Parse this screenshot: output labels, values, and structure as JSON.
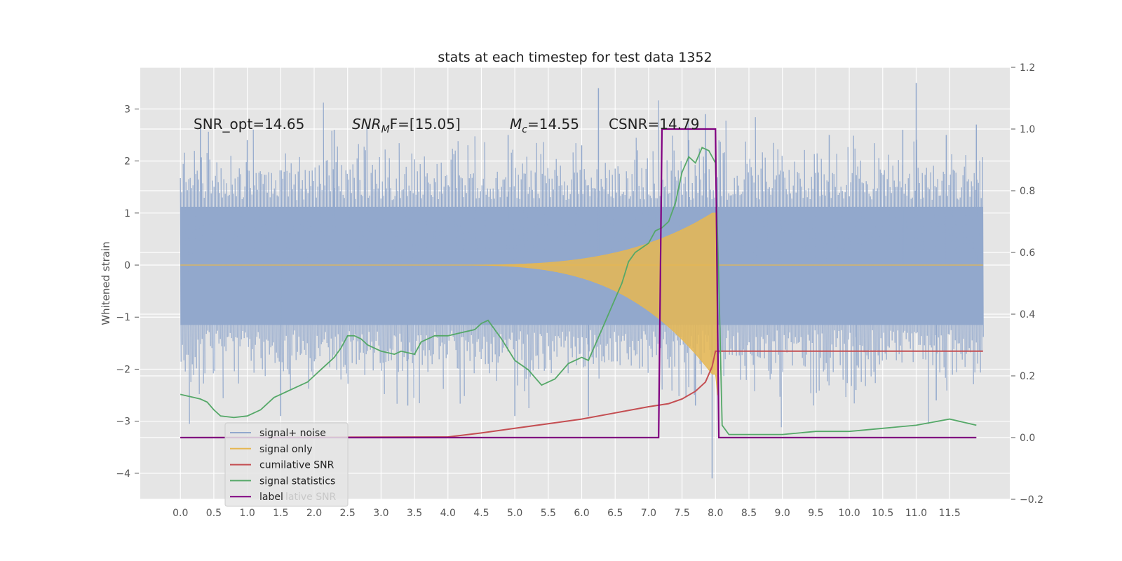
{
  "chart_data": {
    "type": "line",
    "title": "stats at each timestep for test data 1352",
    "xlabel": "",
    "ylabel": "Whitened strain",
    "xlim": [
      -0.6,
      12.4
    ],
    "ylim": [
      -4.5,
      3.8
    ],
    "y2lim": [
      -0.2,
      1.2
    ],
    "grid": true,
    "x_ticks": [
      "0.0",
      "0.5",
      "1.0",
      "1.5",
      "2.0",
      "2.5",
      "3.0",
      "3.5",
      "4.0",
      "4.5",
      "5.0",
      "5.5",
      "6.0",
      "6.5",
      "7.0",
      "7.5",
      "8.0",
      "8.5",
      "9.0",
      "9.5",
      "10.0",
      "10.5",
      "11.0",
      "11.5"
    ],
    "y_ticks": [
      "−4",
      "−3",
      "−2",
      "−1",
      "0",
      "1",
      "2",
      "3"
    ],
    "y2_ticks": [
      "−0.2",
      "0.0",
      "0.2",
      "0.4",
      "0.6",
      "0.8",
      "1.0",
      "1.2"
    ],
    "annotations": {
      "snr_opt": "SNR_opt=14.65",
      "snr_mf_italic": "SNR",
      "snr_mf_sub": "M",
      "snr_mf_tail": "F=[15.05]",
      "mc_italic": "M",
      "mc_sub": "c",
      "mc_tail": "=14.55",
      "csnr": "CSNR=14.79"
    },
    "legend": {
      "placement": "lower-left",
      "entries": [
        "signal+ noise",
        "signal only",
        "cumilative SNR",
        "signal statistics",
        "label"
      ],
      "ghost_text": "lative SNR"
    },
    "series": [
      {
        "name": "signal+ noise",
        "axis": "left",
        "color": "#92a8cc",
        "style": "dense noise, roughly ±1.5 whitened strain, peaks near 3.4 and 3.5, dips near -2.9 and -4.1",
        "x_range": [
          0.0,
          12.0
        ],
        "spikes": [
          [
            0.3,
            2.7
          ],
          [
            1.0,
            2.4
          ],
          [
            1.5,
            -2.9
          ],
          [
            2.3,
            2.6
          ],
          [
            3.4,
            -2.7
          ],
          [
            4.9,
            2.5
          ],
          [
            5.0,
            -2.9
          ],
          [
            6.0,
            2.3
          ],
          [
            6.1,
            -2.9
          ],
          [
            6.25,
            3.4
          ],
          [
            7.6,
            2.4
          ],
          [
            7.7,
            -2.7
          ],
          [
            7.85,
            2.9
          ],
          [
            7.95,
            -4.1
          ],
          [
            9.7,
            2.5
          ],
          [
            10.1,
            -2.4
          ],
          [
            10.8,
            2.6
          ],
          [
            11.0,
            3.5
          ],
          [
            11.3,
            -2.6
          ],
          [
            11.45,
            2.5
          ],
          [
            11.9,
            2.7
          ]
        ]
      },
      {
        "name": "signal only",
        "axis": "left",
        "color": "#e6b751",
        "style": "chirp growing from t=4.0 to merger at t=8.0, amplitude reaching about 1.0, zero afterwards",
        "chirp_start": 4.0,
        "merger_time": 8.0,
        "max_amplitude": 1.0
      },
      {
        "name": "cumilative SNR",
        "axis": "right",
        "color": "#c44e52",
        "x": [
          0.0,
          4.0,
          4.5,
          5.0,
          5.5,
          6.0,
          6.5,
          7.0,
          7.3,
          7.5,
          7.7,
          7.85,
          7.95,
          8.0,
          12.0
        ],
        "y": [
          0.0,
          0.002,
          0.015,
          0.03,
          0.045,
          0.06,
          0.08,
          0.1,
          0.11,
          0.125,
          0.15,
          0.18,
          0.23,
          0.28,
          0.28
        ]
      },
      {
        "name": "signal statistics",
        "axis": "right",
        "color": "#55a868",
        "x": [
          0.0,
          0.1,
          0.2,
          0.3,
          0.4,
          0.5,
          0.6,
          0.8,
          1.0,
          1.2,
          1.4,
          1.5,
          1.6,
          1.7,
          1.8,
          1.9,
          2.0,
          2.1,
          2.2,
          2.3,
          2.4,
          2.5,
          2.6,
          2.7,
          2.8,
          3.0,
          3.2,
          3.3,
          3.5,
          3.6,
          3.8,
          4.0,
          4.2,
          4.4,
          4.5,
          4.6,
          4.7,
          4.8,
          5.0,
          5.2,
          5.4,
          5.5,
          5.6,
          5.8,
          6.0,
          6.1,
          6.2,
          6.3,
          6.4,
          6.5,
          6.6,
          6.7,
          6.8,
          7.0,
          7.1,
          7.2,
          7.3,
          7.4,
          7.5,
          7.6,
          7.7,
          7.8,
          7.9,
          8.0,
          8.05,
          8.1,
          8.2,
          8.3,
          8.5,
          9.0,
          9.5,
          10.0,
          10.5,
          11.0,
          11.5,
          11.9
        ],
        "y": [
          0.14,
          0.135,
          0.13,
          0.125,
          0.115,
          0.09,
          0.07,
          0.065,
          0.07,
          0.09,
          0.13,
          0.14,
          0.15,
          0.16,
          0.17,
          0.18,
          0.2,
          0.22,
          0.24,
          0.26,
          0.29,
          0.33,
          0.33,
          0.32,
          0.3,
          0.28,
          0.27,
          0.28,
          0.27,
          0.31,
          0.33,
          0.33,
          0.34,
          0.35,
          0.37,
          0.38,
          0.35,
          0.32,
          0.25,
          0.22,
          0.17,
          0.18,
          0.19,
          0.24,
          0.26,
          0.25,
          0.3,
          0.35,
          0.4,
          0.45,
          0.5,
          0.57,
          0.6,
          0.63,
          0.67,
          0.68,
          0.7,
          0.76,
          0.86,
          0.91,
          0.89,
          0.94,
          0.93,
          0.89,
          0.5,
          0.04,
          0.01,
          0.01,
          0.01,
          0.01,
          0.02,
          0.02,
          0.03,
          0.04,
          0.06,
          0.04
        ]
      },
      {
        "name": "label",
        "axis": "right",
        "color": "#800080",
        "x": [
          0.0,
          7.15,
          7.2,
          8.0,
          8.05,
          11.9
        ],
        "y": [
          0.0,
          0.0,
          1.0,
          1.0,
          0.0,
          0.0
        ]
      }
    ]
  }
}
